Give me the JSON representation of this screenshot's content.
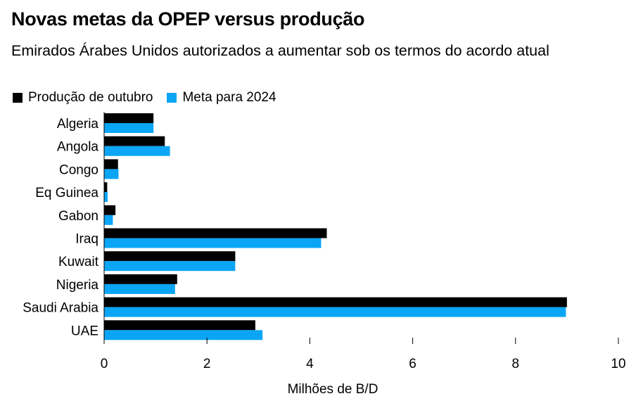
{
  "chart_data": {
    "type": "bar",
    "orientation": "horizontal",
    "title": "Novas metas da OPEP versus produção",
    "subtitle": "Emirados Árabes Unidos autorizados a aumentar sob os termos do acordo atual",
    "xlabel": "Milhões de B/D",
    "ylabel": "",
    "xlim": [
      0,
      10
    ],
    "xticks": [
      0,
      2,
      4,
      6,
      8,
      10
    ],
    "grid": false,
    "legend_position": "top-left",
    "categories": [
      "Algeria",
      "Angola",
      "Congo",
      "Eq Guinea",
      "Gabon",
      "Iraq",
      "Kuwait",
      "Nigeria",
      "Saudi Arabia",
      "UAE"
    ],
    "series": [
      {
        "name": "Produção de outubro",
        "color": "#000000",
        "values": [
          0.96,
          1.18,
          0.27,
          0.06,
          0.22,
          4.33,
          2.55,
          1.42,
          9.0,
          2.94
        ]
      },
      {
        "name": "Meta para 2024",
        "color": "#0BA5F5",
        "values": [
          0.96,
          1.28,
          0.28,
          0.07,
          0.17,
          4.22,
          2.55,
          1.38,
          8.98,
          3.08
        ]
      }
    ]
  }
}
